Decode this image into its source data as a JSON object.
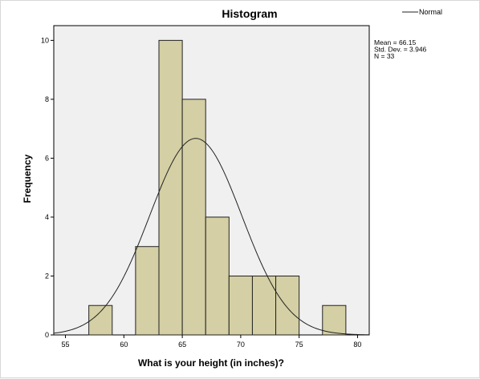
{
  "chart_data": {
    "type": "bar",
    "title": "Histogram",
    "xlabel": "What is your height (in inches)?",
    "ylabel": "Frequency",
    "xlim": [
      54,
      81
    ],
    "ylim": [
      0,
      10.5
    ],
    "xticks": [
      "55",
      "60",
      "65",
      "70",
      "75",
      "80"
    ],
    "xtick_values": [
      55,
      60,
      65,
      70,
      75,
      80
    ],
    "yticks": [
      "0",
      "2",
      "4",
      "6",
      "8",
      "10"
    ],
    "ytick_values": [
      0,
      2,
      4,
      6,
      8,
      10
    ],
    "bins": [
      {
        "start": 57,
        "end": 59,
        "count": 1
      },
      {
        "start": 61,
        "end": 63,
        "count": 3
      },
      {
        "start": 63,
        "end": 65,
        "count": 10
      },
      {
        "start": 65,
        "end": 67,
        "count": 8
      },
      {
        "start": 67,
        "end": 69,
        "count": 4
      },
      {
        "start": 69,
        "end": 71,
        "count": 2
      },
      {
        "start": 71,
        "end": 73,
        "count": 2
      },
      {
        "start": 73,
        "end": 75,
        "count": 2
      },
      {
        "start": 77,
        "end": 79,
        "count": 1
      }
    ],
    "normal_curve": {
      "name": "Normal",
      "mean": 66.15,
      "sd": 3.946,
      "n": 33,
      "bin_width": 2
    },
    "stats": [
      "Mean = 66.15",
      "Std. Dev. = 3.946",
      "N = 33"
    ],
    "legend": {
      "label": "Normal",
      "position": "top-right"
    },
    "grid": false,
    "colors": {
      "bar_fill": "#d4cfa4",
      "bar_stroke": "#222222",
      "plot_bg": "#f0f0f0",
      "curve": "#222222"
    }
  }
}
